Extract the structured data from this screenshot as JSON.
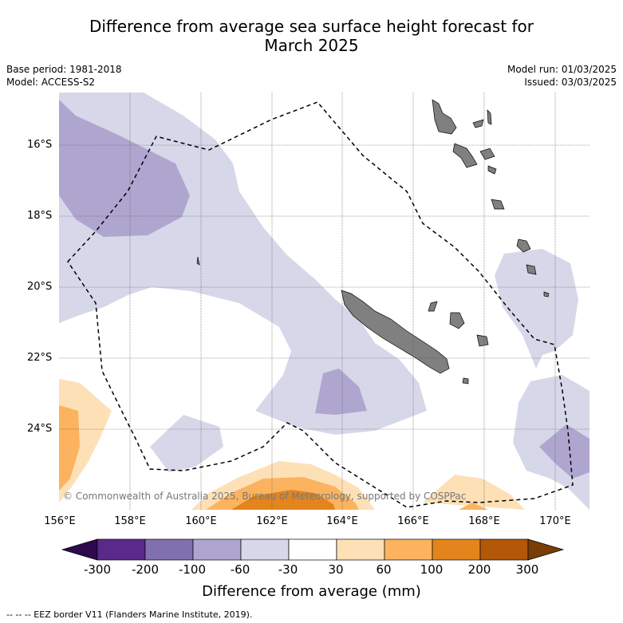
{
  "title_line1": "Difference from average sea surface height forecast for",
  "title_line2": "March 2025",
  "meta_left": {
    "base_period": "Base period: 1981-2018",
    "model": "Model: ACCESS-S2"
  },
  "meta_right": {
    "model_run": "Model run: 01/03/2025",
    "issued": "Issued: 03/03/2025"
  },
  "lat_labels": [
    "16°S",
    "18°S",
    "20°S",
    "22°S",
    "24°S"
  ],
  "lon_labels": [
    "156°E",
    "158°E",
    "160°E",
    "162°E",
    "164°E",
    "166°E",
    "168°E",
    "170°E"
  ],
  "copyright": "© Commonwealth of Australia 2025, Bureau of Meteorology, supported by COSPPac",
  "colorbar": {
    "ticks": [
      "-300",
      "-200",
      "-100",
      "-60",
      "-30",
      "30",
      "60",
      "100",
      "200",
      "300"
    ],
    "colors": [
      "#2d0a4e",
      "#5a2a8a",
      "#8170ae",
      "#afa6d0",
      "#d7d7ea",
      "#ffffff",
      "#fde0b6",
      "#fbb35f",
      "#e3841c",
      "#b35709",
      "#7a3d06"
    ],
    "label": "Difference from average (mm)"
  },
  "footnote": "-- -- -- EEZ border V11 (Flanders Marine Institute, 2019)."
}
